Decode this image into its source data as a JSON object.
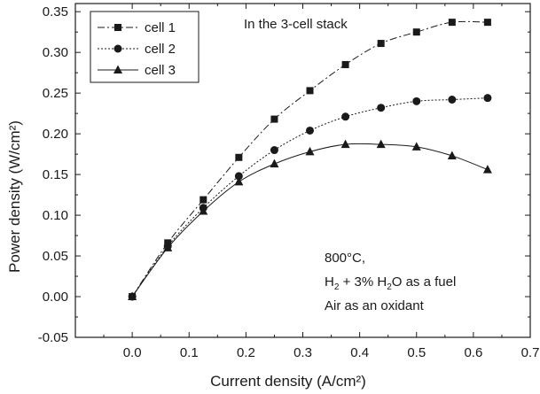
{
  "chart_data": {
    "type": "line",
    "xlabel": "Current density (A/cm²)",
    "ylabel": "Power density (W/cm²)",
    "xlim": [
      -0.1,
      0.7
    ],
    "ylim": [
      -0.05,
      0.36
    ],
    "x_ticks": [
      "0.0",
      "0.1",
      "0.2",
      "0.3",
      "0.4",
      "0.5",
      "0.6",
      "0.7"
    ],
    "y_ticks": [
      "-0.05",
      "0.00",
      "0.05",
      "0.10",
      "0.15",
      "0.20",
      "0.25",
      "0.30",
      "0.35"
    ],
    "grid": false,
    "legend_position": "top-left",
    "annotation_top": "In the 3-cell stack",
    "annotation_conditions": {
      "line1": "800°C,",
      "line2_parts": [
        "H",
        "2",
        " + 3% H",
        "2",
        "O as a fuel"
      ],
      "line3": "Air as an oxidant"
    },
    "series": [
      {
        "name": "cell 1",
        "marker": "square",
        "dash": "8,3,2,3",
        "x": [
          0.0,
          0.0625,
          0.125,
          0.1875,
          0.25,
          0.3125,
          0.375,
          0.4375,
          0.5,
          0.5625,
          0.625
        ],
        "y": [
          0.0,
          0.066,
          0.119,
          0.171,
          0.218,
          0.253,
          0.285,
          0.311,
          0.325,
          0.337,
          0.337
        ]
      },
      {
        "name": "cell 2",
        "marker": "circle",
        "dash": "2,2",
        "x": [
          0.0,
          0.0625,
          0.125,
          0.1875,
          0.25,
          0.3125,
          0.375,
          0.4375,
          0.5,
          0.5625,
          0.625
        ],
        "y": [
          0.0,
          0.062,
          0.109,
          0.148,
          0.18,
          0.204,
          0.221,
          0.232,
          0.24,
          0.242,
          0.244
        ]
      },
      {
        "name": "cell 3",
        "marker": "triangle",
        "dash": "",
        "x": [
          0.0,
          0.0625,
          0.125,
          0.1875,
          0.25,
          0.3125,
          0.375,
          0.4375,
          0.5,
          0.5625,
          0.625
        ],
        "y": [
          0.0,
          0.06,
          0.105,
          0.141,
          0.163,
          0.178,
          0.187,
          0.187,
          0.184,
          0.173,
          0.156
        ]
      }
    ],
    "colors": {
      "ink": "#1a1a1a",
      "background": "#ffffff"
    }
  }
}
